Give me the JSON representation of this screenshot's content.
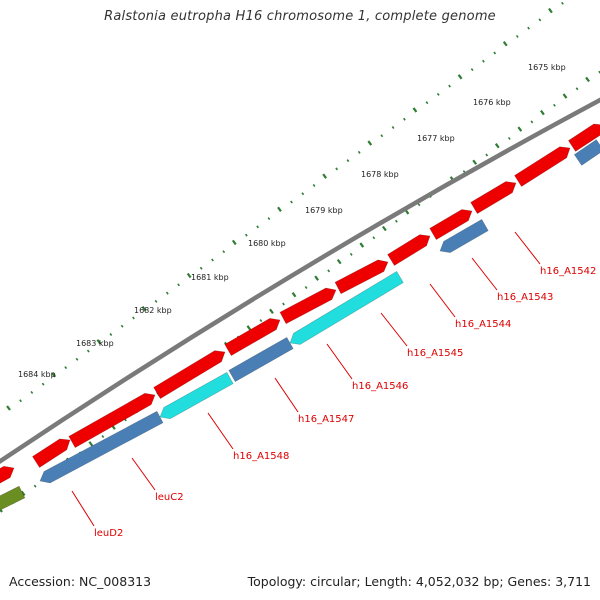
{
  "title": "Ralstonia eutropha H16 chromosome 1, complete genome",
  "footer": {
    "accession": "Accession: NC_008313",
    "summary": "Topology: circular; Length: 4,052,032 bp; Genes: 3,711"
  },
  "colors": {
    "backbone": "#7a7a7a",
    "ticks": "#2e7d32",
    "forward_gene": "#ee0000",
    "reverse_gene": "#4a7fb5",
    "highlight_gene": "#22dddd",
    "other_gene": "#6b8e23",
    "label": "#dd0000"
  },
  "kbp_labels": [
    "1675 kbp",
    "1676 kbp",
    "1677 kbp",
    "1678 kbp",
    "1679 kbp",
    "1680 kbp",
    "1681 kbp",
    "1682 kbp",
    "1683 kbp",
    "1684 kbp"
  ],
  "gene_labels": [
    "h16_A1542",
    "h16_A1543",
    "h16_A1544",
    "h16_A1545",
    "h16_A1546",
    "h16_A1547",
    "h16_A1548",
    "leuC2",
    "leuD2"
  ]
}
